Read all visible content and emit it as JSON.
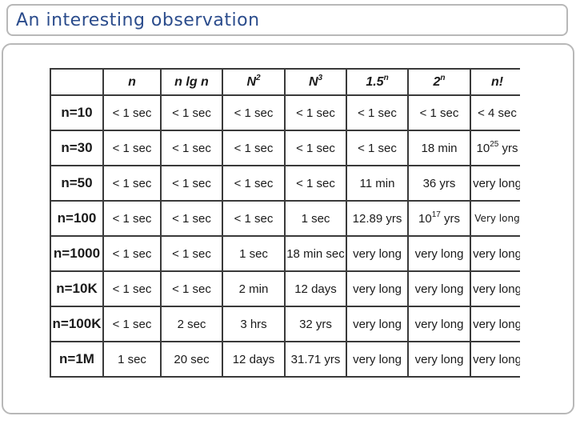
{
  "title": "An interesting observation",
  "table": {
    "header": [
      "n",
      "n lg n",
      {
        "base": "N",
        "sup": "2"
      },
      {
        "base": "N",
        "sup": "3"
      },
      {
        "base": "1.5",
        "sup": "n"
      },
      {
        "base": "2",
        "sup": "n"
      },
      "n!"
    ],
    "rows": [
      {
        "label": "n=10",
        "cells": [
          "< 1 sec",
          "< 1 sec",
          "< 1 sec",
          "< 1 sec",
          "< 1 sec",
          "< 1 sec",
          "< 4 sec"
        ]
      },
      {
        "label": "n=30",
        "cells": [
          "< 1 sec",
          "< 1 sec",
          "< 1 sec",
          "< 1 sec",
          "< 1 sec",
          "18 min",
          {
            "base": "10",
            "sup": "25",
            "after": " yrs"
          }
        ]
      },
      {
        "label": "n=50",
        "cells": [
          "< 1 sec",
          "< 1 sec",
          "< 1 sec",
          "< 1 sec",
          "11 min",
          "36 yrs",
          "very long"
        ]
      },
      {
        "label": "n=100",
        "cells": [
          "< 1 sec",
          "< 1 sec",
          "< 1 sec",
          "1 sec",
          "12.89 yrs",
          {
            "base": "10",
            "sup": "17",
            "after": " yrs"
          },
          "Very long"
        ]
      },
      {
        "label": "n=1000",
        "cells": [
          "< 1 sec",
          "< 1 sec",
          "1 sec",
          "18 min sec",
          "very long",
          "very long",
          "very long"
        ]
      },
      {
        "label": "n=10K",
        "cells": [
          "< 1 sec",
          "< 1 sec",
          "2 min",
          "12 days",
          "very long",
          "very long",
          "very long"
        ]
      },
      {
        "label": "n=100K",
        "cells": [
          "< 1 sec",
          "2 sec",
          "3 hrs",
          "32 yrs",
          "very long",
          "very long",
          "very long"
        ]
      },
      {
        "label": "n=1M",
        "cells": [
          "1 sec",
          "20 sec",
          "12 days",
          "31.71 yrs",
          "very long",
          "very long",
          "very long"
        ]
      }
    ]
  }
}
